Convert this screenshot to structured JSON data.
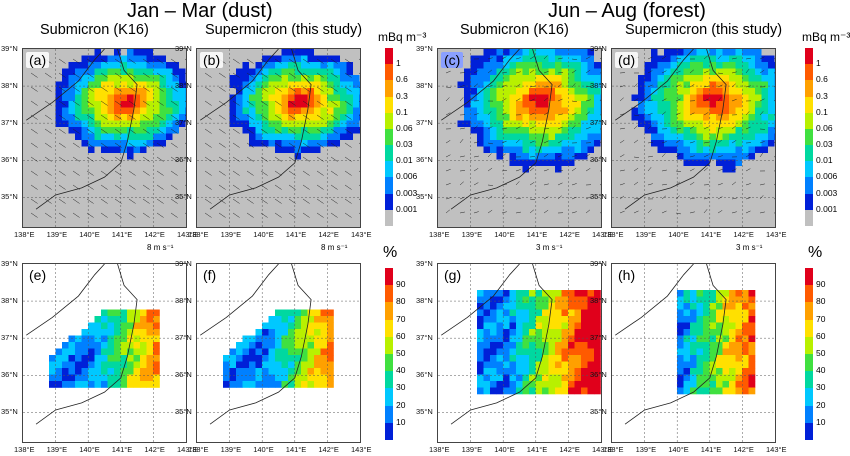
{
  "groups": [
    {
      "title": "Jan – Mar (dust)"
    },
    {
      "title": "Jun – Aug (forest)"
    }
  ],
  "columns": [
    {
      "title": "Submicron (K16)"
    },
    {
      "title": "Supermicron (this study)"
    },
    {
      "title": "Submicron (K16)"
    },
    {
      "title": "Supermicron (this study)"
    }
  ],
  "panels": [
    {
      "label": "(a)"
    },
    {
      "label": "(b)"
    },
    {
      "label": "(c)"
    },
    {
      "label": "(d)"
    },
    {
      "label": "(e)"
    },
    {
      "label": "(f)"
    },
    {
      "label": "(g)"
    },
    {
      "label": "(h)"
    }
  ],
  "axes": {
    "lat_ticks": [
      "39°N",
      "38°N",
      "37°N",
      "36°N",
      "35°N"
    ],
    "lon_ticks": [
      "138°E",
      "139°E",
      "140°E",
      "141°E",
      "142°E",
      "143°E"
    ]
  },
  "wind_scale": {
    "jan": "8",
    "jun": "3",
    "unit": "m s⁻¹"
  },
  "concentration_colorbar": {
    "unit": "mBq m⁻³",
    "labels": [
      "1",
      "0.6",
      "0.3",
      "0.1",
      "0.06",
      "0.03",
      "0.01",
      "0.006",
      "0.003",
      "0.001"
    ],
    "colors": [
      "#e0001b",
      "#ff5a00",
      "#ffa000",
      "#ffe000",
      "#b8f000",
      "#40e040",
      "#00d8a0",
      "#00c8ff",
      "#0080ff",
      "#0020d8",
      "#c0c0c0"
    ]
  },
  "percent_colorbar": {
    "unit": "%",
    "labels": [
      "90",
      "80",
      "70",
      "60",
      "50",
      "40",
      "30",
      "20",
      "10"
    ],
    "colors": [
      "#e0001b",
      "#ff5a00",
      "#ffa000",
      "#ffe000",
      "#b8f000",
      "#40e040",
      "#00d8a0",
      "#00c8ff",
      "#0080ff",
      "#0020d8"
    ]
  }
}
